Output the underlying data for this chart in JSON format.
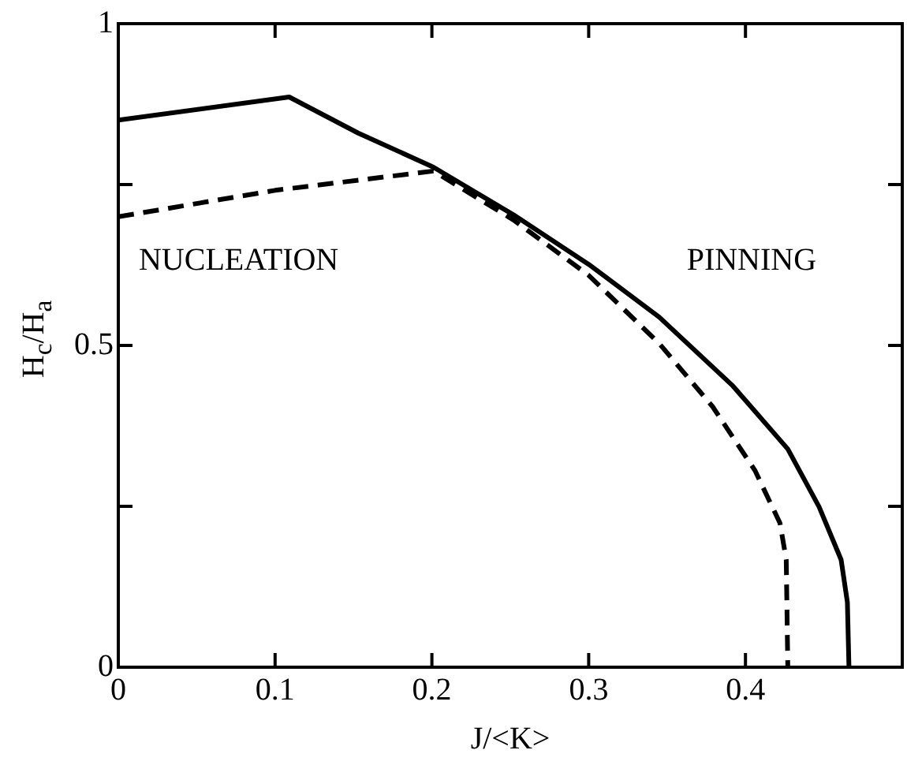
{
  "chart_data": {
    "type": "line",
    "xlabel": "J/<K>",
    "ylabel": "H$_{c}$/H$_{a}$",
    "xlim": [
      0,
      0.5
    ],
    "ylim": [
      0,
      1
    ],
    "xticks": [
      0,
      0.1,
      0.2,
      0.3,
      0.4,
      {
        "value": 0.5,
        "label": null
      }
    ],
    "yticks": [
      0,
      {
        "value": 0.25,
        "label": null
      },
      0.5,
      {
        "value": 0.75,
        "label": null
      },
      1
    ],
    "grid": false,
    "legend": false,
    "marker": "none",
    "annotations": [
      "NUCLEATION",
      "PINNING"
    ],
    "series": [
      {
        "color": "#000000",
        "line_style": "solid",
        "x": [
          0,
          0.109,
          0.153,
          0.201,
          0.252,
          0.3,
          0.345,
          0.392,
          0.427,
          0.447,
          0.461,
          0.465,
          0.466
        ],
        "values": [
          0.85,
          0.886,
          0.83,
          0.777,
          0.703,
          0.626,
          0.544,
          0.437,
          0.339,
          0.249,
          0.167,
          0.101,
          0
        ]
      },
      {
        "color": "#000000",
        "line_style": "dashed",
        "x": [
          0,
          0.1,
          0.201,
          0.252,
          0.3,
          0.345,
          0.379,
          0.406,
          0.422,
          0.426,
          0.427
        ],
        "values": [
          0.7,
          0.741,
          0.771,
          0.695,
          0.609,
          0.503,
          0.405,
          0.306,
          0.224,
          0.167,
          0
        ]
      }
    ]
  }
}
